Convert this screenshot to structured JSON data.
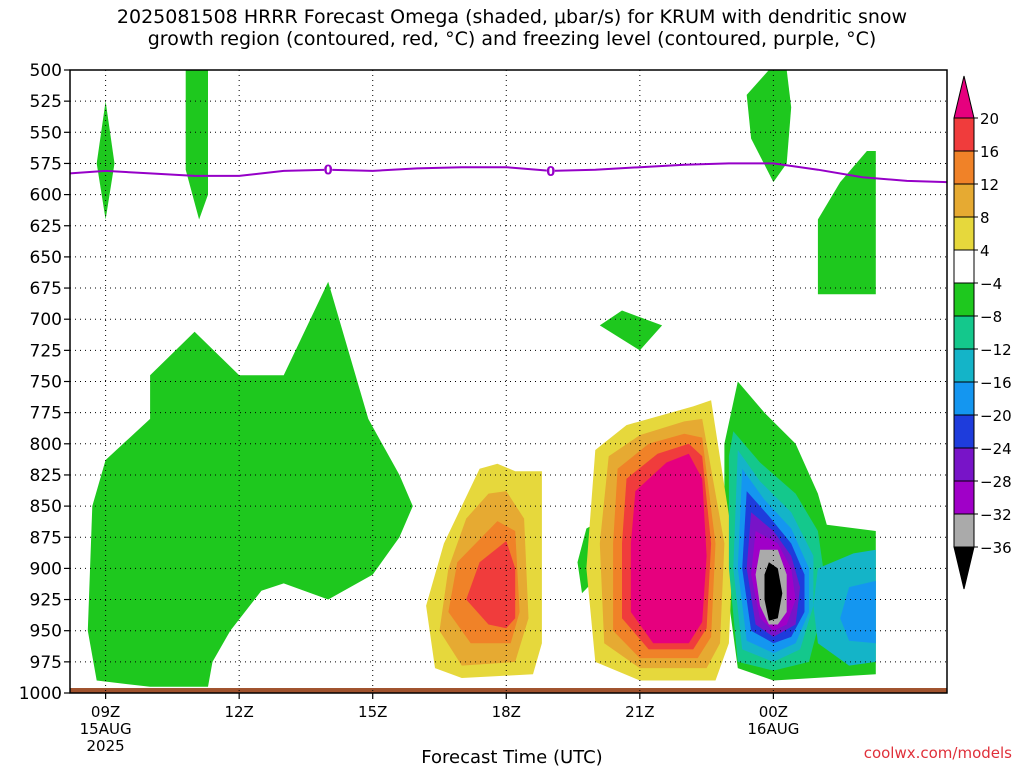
{
  "title_line1": "2025081508 HRRR Forecast Omega (shaded, μbar/s) for KRUM with dendritic snow",
  "title_line2": "growth region (contoured, red, °C) and freezing level (contoured, purple, °C)",
  "xlabel": "Forecast Time (UTC)",
  "credit": "coolwx.com/models",
  "chart_data": {
    "type": "heatmap",
    "y_axis": {
      "label": "",
      "ticks": [
        500,
        525,
        550,
        575,
        600,
        625,
        650,
        675,
        700,
        725,
        750,
        775,
        800,
        825,
        850,
        875,
        900,
        925,
        950,
        975,
        1000
      ],
      "range": [
        500,
        1000
      ],
      "inverted": true,
      "unit": "hPa"
    },
    "x_axis": {
      "range": [
        8.2,
        27.9
      ],
      "ticks": [
        {
          "hour": 9,
          "label": "09Z",
          "date": "15AUG",
          "year": "2025"
        },
        {
          "hour": 12,
          "label": "12Z",
          "date": "",
          "year": ""
        },
        {
          "hour": 15,
          "label": "15Z",
          "date": "",
          "year": ""
        },
        {
          "hour": 18,
          "label": "18Z",
          "date": "",
          "year": ""
        },
        {
          "hour": 21,
          "label": "21Z",
          "date": "",
          "year": ""
        },
        {
          "hour": 24,
          "label": "00Z",
          "date": "16AUG",
          "year": ""
        }
      ]
    },
    "grid": true,
    "colorbar": {
      "labels": [
        "20",
        "16",
        "12",
        "8",
        "4",
        "−4",
        "−8",
        "−12",
        "−16",
        "−20",
        "−24",
        "−28",
        "−32",
        "−36"
      ],
      "colors": [
        "#e6007e",
        "#f03c3c",
        "#f08228",
        "#e6aa32",
        "#e6d83c",
        "#ffffff",
        "#1ec81e",
        "#14c88c",
        "#14b4c8",
        "#1496f0",
        "#1e3cdc",
        "#7814c8",
        "#a000c8",
        "#aaaaaa",
        "#000000"
      ]
    },
    "freezing_level": {
      "color": "#9600c8",
      "label": "0",
      "points": [
        [
          8.2,
          583
        ],
        [
          9,
          581
        ],
        [
          10,
          583
        ],
        [
          11,
          585
        ],
        [
          12,
          585
        ],
        [
          13,
          581
        ],
        [
          14,
          580
        ],
        [
          15,
          581
        ],
        [
          16,
          579
        ],
        [
          17,
          578
        ],
        [
          18,
          578
        ],
        [
          19,
          581
        ],
        [
          20,
          580
        ],
        [
          21,
          578
        ],
        [
          22,
          576
        ],
        [
          23,
          575
        ],
        [
          24,
          575
        ],
        [
          25,
          580
        ],
        [
          26,
          586
        ],
        [
          27,
          589
        ],
        [
          27.9,
          590
        ]
      ],
      "label_hours": [
        14,
        19
      ]
    },
    "omega_regions": [
      {
        "level": "green",
        "color": "#1ec81e",
        "points": [
          [
            9,
            525
          ],
          [
            9.2,
            575
          ],
          [
            9,
            620
          ],
          [
            8.8,
            575
          ]
        ]
      },
      {
        "level": "green",
        "color": "#1ec81e",
        "points": [
          [
            10.8,
            500
          ],
          [
            11.3,
            500
          ],
          [
            11.3,
            600
          ],
          [
            11.1,
            620
          ],
          [
            10.8,
            580
          ]
        ]
      },
      {
        "level": "green",
        "color": "#1ec81e",
        "points": [
          [
            9,
            813
          ],
          [
            10,
            780
          ],
          [
            10,
            745
          ],
          [
            11,
            710
          ],
          [
            12,
            745
          ],
          [
            13,
            745
          ],
          [
            14,
            670
          ],
          [
            14.9,
            780
          ],
          [
            15.6,
            825
          ],
          [
            15.9,
            850
          ],
          [
            15.6,
            875
          ],
          [
            15,
            905
          ],
          [
            14,
            925
          ],
          [
            13,
            912
          ],
          [
            12.5,
            918
          ],
          [
            11.8,
            950
          ],
          [
            11.4,
            975
          ],
          [
            11.3,
            995
          ],
          [
            10,
            995
          ],
          [
            8.8,
            990
          ],
          [
            8.6,
            950
          ],
          [
            8.7,
            850
          ]
        ]
      },
      {
        "level": "green",
        "color": "#1ec81e",
        "points": [
          [
            20.1,
            705
          ],
          [
            20.6,
            693
          ],
          [
            21.5,
            705
          ],
          [
            21,
            725
          ]
        ]
      },
      {
        "level": "green",
        "color": "#1ec81e",
        "points": [
          [
            19.8,
            868
          ],
          [
            20.1,
            862
          ],
          [
            20.1,
            905
          ],
          [
            19.7,
            920
          ],
          [
            19.6,
            895
          ]
        ]
      },
      {
        "level": "green",
        "color": "#1ec81e",
        "points": [
          [
            23.9,
            500
          ],
          [
            24.3,
            500
          ],
          [
            24.4,
            530
          ],
          [
            24.3,
            575
          ],
          [
            24,
            590
          ],
          [
            23.5,
            555
          ],
          [
            23.4,
            520
          ]
        ]
      },
      {
        "level": "green",
        "color": "#1ec81e",
        "points": [
          [
            25,
            620
          ],
          [
            25.5,
            590
          ],
          [
            26.1,
            565
          ],
          [
            26.3,
            565
          ],
          [
            26.3,
            680
          ],
          [
            25,
            680
          ]
        ]
      },
      {
        "level": "green",
        "color": "#1ec81e",
        "points": [
          [
            23.2,
            750
          ],
          [
            23.8,
            775
          ],
          [
            24.5,
            800
          ],
          [
            25,
            840
          ],
          [
            25.2,
            865
          ],
          [
            26.3,
            870
          ],
          [
            26.3,
            985
          ],
          [
            24,
            990
          ],
          [
            23.2,
            980
          ],
          [
            22.9,
            900
          ],
          [
            22.9,
            800
          ]
        ]
      },
      {
        "level": "yellow",
        "color": "#e6d83c",
        "points": [
          [
            18.2,
            822
          ],
          [
            18.8,
            822
          ],
          [
            18.8,
            860
          ],
          [
            18.8,
            960
          ],
          [
            18.6,
            985
          ],
          [
            17,
            988
          ],
          [
            16.4,
            980
          ],
          [
            16.2,
            930
          ],
          [
            16.6,
            880
          ],
          [
            17.4,
            820
          ],
          [
            17.8,
            816
          ]
        ]
      },
      {
        "level": "orange-light",
        "color": "#e6aa32",
        "points": [
          [
            17.6,
            840
          ],
          [
            18,
            838
          ],
          [
            18.4,
            860
          ],
          [
            18.5,
            940
          ],
          [
            18.2,
            975
          ],
          [
            17,
            978
          ],
          [
            16.5,
            950
          ],
          [
            16.7,
            900
          ],
          [
            17.1,
            860
          ]
        ]
      },
      {
        "level": "orange",
        "color": "#f08228",
        "points": [
          [
            17.8,
            862
          ],
          [
            18.2,
            870
          ],
          [
            18.3,
            935
          ],
          [
            18.1,
            960
          ],
          [
            17.2,
            960
          ],
          [
            16.7,
            935
          ],
          [
            16.9,
            895
          ]
        ]
      },
      {
        "level": "red",
        "color": "#f03c3c",
        "points": [
          [
            18,
            878
          ],
          [
            18.2,
            900
          ],
          [
            18.2,
            940
          ],
          [
            18,
            948
          ],
          [
            17.6,
            945
          ],
          [
            17.1,
            925
          ],
          [
            17.4,
            895
          ]
        ]
      },
      {
        "level": "yellow",
        "color": "#e6d83c",
        "points": [
          [
            20,
            805
          ],
          [
            20.7,
            785
          ],
          [
            22.2,
            770
          ],
          [
            22.6,
            765
          ],
          [
            23.1,
            880
          ],
          [
            23,
            960
          ],
          [
            22.7,
            990
          ],
          [
            21,
            990
          ],
          [
            20,
            975
          ],
          [
            19.8,
            900
          ]
        ]
      },
      {
        "level": "orange-light",
        "color": "#e6aa32",
        "points": [
          [
            20.3,
            810
          ],
          [
            21,
            793
          ],
          [
            22,
            782
          ],
          [
            22.4,
            780
          ],
          [
            22.9,
            880
          ],
          [
            22.8,
            960
          ],
          [
            22.5,
            980
          ],
          [
            21,
            980
          ],
          [
            20.2,
            960
          ],
          [
            20.1,
            880
          ]
        ]
      },
      {
        "level": "orange",
        "color": "#f08228",
        "points": [
          [
            20.5,
            820
          ],
          [
            21.2,
            800
          ],
          [
            22,
            792
          ],
          [
            22.4,
            795
          ],
          [
            22.7,
            880
          ],
          [
            22.6,
            955
          ],
          [
            22.3,
            972
          ],
          [
            21,
            972
          ],
          [
            20.4,
            950
          ],
          [
            20.4,
            880
          ]
        ]
      },
      {
        "level": "red",
        "color": "#f03c3c",
        "points": [
          [
            20.7,
            828
          ],
          [
            21.4,
            808
          ],
          [
            22.1,
            800
          ],
          [
            22.4,
            810
          ],
          [
            22.6,
            880
          ],
          [
            22.5,
            948
          ],
          [
            22.2,
            965
          ],
          [
            21.2,
            965
          ],
          [
            20.6,
            940
          ],
          [
            20.6,
            880
          ]
        ]
      },
      {
        "level": "magenta",
        "color": "#e6007e",
        "points": [
          [
            20.9,
            838
          ],
          [
            21.6,
            815
          ],
          [
            22.1,
            808
          ],
          [
            22.4,
            828
          ],
          [
            22.5,
            890
          ],
          [
            22.4,
            943
          ],
          [
            22.1,
            960
          ],
          [
            21.3,
            960
          ],
          [
            20.8,
            935
          ],
          [
            20.8,
            880
          ]
        ]
      },
      {
        "level": "teal",
        "color": "#14c88c",
        "points": [
          [
            23.1,
            790
          ],
          [
            23.7,
            815
          ],
          [
            24.5,
            840
          ],
          [
            25,
            870
          ],
          [
            25.2,
            920
          ],
          [
            24.8,
            975
          ],
          [
            24,
            982
          ],
          [
            23.2,
            975
          ],
          [
            23,
            900
          ],
          [
            23,
            810
          ]
        ]
      },
      {
        "level": "cyan",
        "color": "#14b4c8",
        "points": [
          [
            23.2,
            805
          ],
          [
            23.7,
            830
          ],
          [
            24.4,
            855
          ],
          [
            24.9,
            890
          ],
          [
            24.9,
            930
          ],
          [
            24.6,
            965
          ],
          [
            24,
            975
          ],
          [
            23.3,
            965
          ],
          [
            23.1,
            900
          ]
        ]
      },
      {
        "level": "cyan",
        "color": "#14b4c8",
        "points": [
          [
            25,
            900
          ],
          [
            25.8,
            888
          ],
          [
            26.3,
            885
          ],
          [
            26.3,
            975
          ],
          [
            25.7,
            978
          ],
          [
            25,
            960
          ],
          [
            24.9,
            930
          ]
        ]
      },
      {
        "level": "blue-light",
        "color": "#1496f0",
        "points": [
          [
            23.3,
            820
          ],
          [
            23.8,
            845
          ],
          [
            24.4,
            868
          ],
          [
            24.8,
            900
          ],
          [
            24.8,
            935
          ],
          [
            24.5,
            960
          ],
          [
            24,
            968
          ],
          [
            23.4,
            958
          ],
          [
            23.2,
            900
          ]
        ]
      },
      {
        "level": "blue-light",
        "color": "#1496f0",
        "points": [
          [
            25.7,
            915
          ],
          [
            26.3,
            910
          ],
          [
            26.3,
            960
          ],
          [
            25.7,
            958
          ],
          [
            25.5,
            940
          ]
        ]
      },
      {
        "level": "blue",
        "color": "#1e3cdc",
        "points": [
          [
            23.4,
            838
          ],
          [
            23.9,
            858
          ],
          [
            24.4,
            880
          ],
          [
            24.7,
            905
          ],
          [
            24.7,
            935
          ],
          [
            24.4,
            955
          ],
          [
            24,
            960
          ],
          [
            23.5,
            950
          ],
          [
            23.3,
            900
          ]
        ]
      },
      {
        "level": "purple",
        "color": "#7814c8",
        "points": [
          [
            23.5,
            855
          ],
          [
            24,
            870
          ],
          [
            24.4,
            890
          ],
          [
            24.6,
            915
          ],
          [
            24.5,
            945
          ],
          [
            24,
            955
          ],
          [
            23.6,
            945
          ],
          [
            23.4,
            900
          ]
        ]
      },
      {
        "level": "violet",
        "color": "#a000c8",
        "points": [
          [
            23.6,
            870
          ],
          [
            24.1,
            880
          ],
          [
            24.4,
            900
          ],
          [
            24.5,
            925
          ],
          [
            24.3,
            945
          ],
          [
            24,
            950
          ],
          [
            23.7,
            940
          ],
          [
            23.5,
            905
          ]
        ]
      },
      {
        "level": "gray",
        "color": "#aaaaaa",
        "points": [
          [
            23.7,
            885
          ],
          [
            24.1,
            885
          ],
          [
            24.3,
            905
          ],
          [
            24.3,
            935
          ],
          [
            24.1,
            945
          ],
          [
            23.9,
            945
          ],
          [
            23.7,
            930
          ],
          [
            23.6,
            905
          ]
        ]
      },
      {
        "level": "black",
        "color": "#000000",
        "points": [
          [
            23.9,
            895
          ],
          [
            24.1,
            900
          ],
          [
            24.2,
            920
          ],
          [
            24.1,
            940
          ],
          [
            23.9,
            942
          ],
          [
            23.8,
            925
          ],
          [
            23.8,
            905
          ]
        ]
      }
    ],
    "ground": {
      "color": "#a0522d",
      "from_pressure": 996
    }
  }
}
